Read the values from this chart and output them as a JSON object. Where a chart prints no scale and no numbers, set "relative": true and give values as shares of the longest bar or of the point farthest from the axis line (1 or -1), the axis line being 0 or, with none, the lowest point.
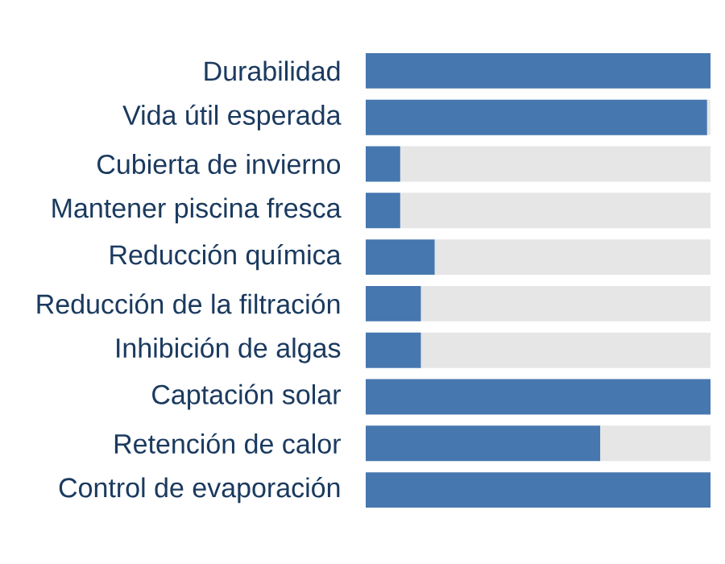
{
  "chart_data": {
    "type": "bar",
    "orientation": "horizontal",
    "stacked": true,
    "relative": true,
    "categories": [
      "Durabilidad",
      "Vida útil esperada",
      "Cubierta de invierno",
      "Mantener piscina fresca",
      "Reducción química",
      "Reducción de la filtración",
      "Inhibición de algas",
      "Captación solar",
      "Retención de calor",
      "Control de evaporación"
    ],
    "series": [
      {
        "color": "#4677af",
        "values": [
          1,
          0.99,
          0.1,
          0.1,
          0.2,
          0.16,
          0.16,
          1,
          0.68,
          1
        ]
      },
      {
        "color": "#e6e6e6",
        "values": [
          0,
          0.01,
          0.9,
          0.9,
          0.8,
          0.84,
          0.84,
          0,
          0.32,
          0
        ]
      }
    ]
  }
}
